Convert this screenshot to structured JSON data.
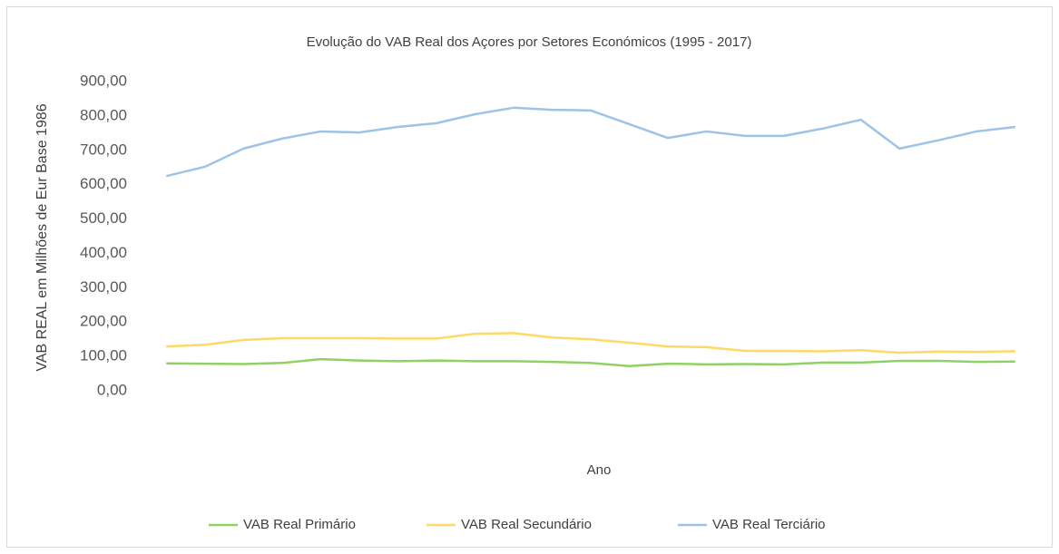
{
  "chart_data": {
    "type": "line",
    "title": "Evolução do VAB Real dos Açores por Setores Económicos (1995 - 2017)",
    "x_label": "Ano",
    "y_label": "VAB REAL em Milhões de Eur Base 1986",
    "categories": [
      null,
      null,
      null,
      null,
      null,
      null,
      null,
      null,
      null,
      null,
      null,
      null,
      null,
      null,
      null,
      null,
      null,
      null,
      null,
      null,
      null,
      null,
      null
    ],
    "series": [
      {
        "name": "VAB Real Primário",
        "color": "#8fd163",
        "values": [
          80,
          79,
          78,
          81,
          92,
          88,
          86,
          88,
          86,
          86,
          84,
          81,
          72,
          79,
          77,
          78,
          77,
          82,
          82,
          87,
          87,
          84,
          85
        ]
      },
      {
        "name": "VAB Real Secundário",
        "color": "#ffd966",
        "values": [
          129,
          134,
          148,
          153,
          153,
          153,
          152,
          152,
          166,
          168,
          155,
          150,
          140,
          129,
          127,
          116,
          116,
          115,
          118,
          111,
          114,
          113,
          115
        ]
      },
      {
        "name": "VAB Real Terciário",
        "color": "#9dc3e6",
        "values": [
          625,
          652,
          705,
          734,
          755,
          752,
          768,
          779,
          805,
          824,
          818,
          816,
          776,
          736,
          755,
          742,
          742,
          763,
          789,
          705,
          729,
          755,
          768
        ]
      }
    ],
    "ylim": [
      0,
      900
    ],
    "yticks": [
      {
        "value": 0,
        "label": "0,00"
      },
      {
        "value": 100,
        "label": "100,00"
      },
      {
        "value": 200,
        "label": "200,00"
      },
      {
        "value": 300,
        "label": "300,00"
      },
      {
        "value": 400,
        "label": "400,00"
      },
      {
        "value": 500,
        "label": "500,00"
      },
      {
        "value": 600,
        "label": "600,00"
      },
      {
        "value": 700,
        "label": "700,00"
      },
      {
        "value": 800,
        "label": "800,00"
      },
      {
        "value": 900,
        "label": "900,00"
      }
    ],
    "legend": "bottom"
  }
}
